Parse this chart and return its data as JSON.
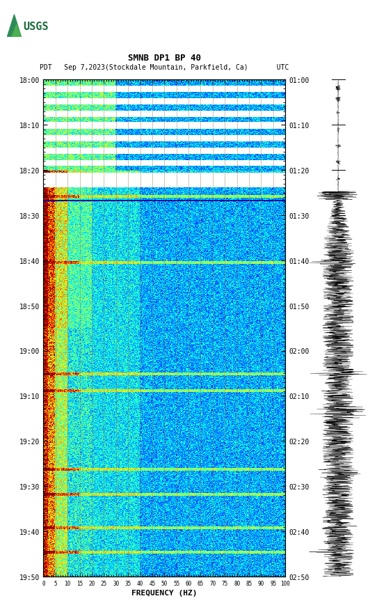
{
  "title_line1": "SMNB DP1 BP 40",
  "title_line2": "PDT   Sep 7,2023(Stockdale Mountain, Parkfield, Ca)       UTC",
  "xlabel": "FREQUENCY (HZ)",
  "freq_ticks": [
    0,
    5,
    10,
    15,
    20,
    25,
    30,
    35,
    40,
    45,
    50,
    55,
    60,
    65,
    70,
    75,
    80,
    85,
    90,
    95,
    100
  ],
  "left_times": [
    "18:00",
    "18:10",
    "18:20",
    "18:30",
    "18:40",
    "18:50",
    "19:00",
    "19:10",
    "19:20",
    "19:30",
    "19:40",
    "19:50"
  ],
  "right_times": [
    "01:00",
    "01:10",
    "01:20",
    "01:30",
    "01:40",
    "01:50",
    "02:00",
    "02:10",
    "02:20",
    "02:30",
    "02:40",
    "02:50"
  ],
  "fig_width": 5.52,
  "fig_height": 8.92,
  "bg_color": "#ffffff",
  "n_time": 720,
  "n_freq": 300,
  "vgrid_color": "#8B7355",
  "vgrid_alpha": 0.6,
  "vgrid_lw": 0.5
}
